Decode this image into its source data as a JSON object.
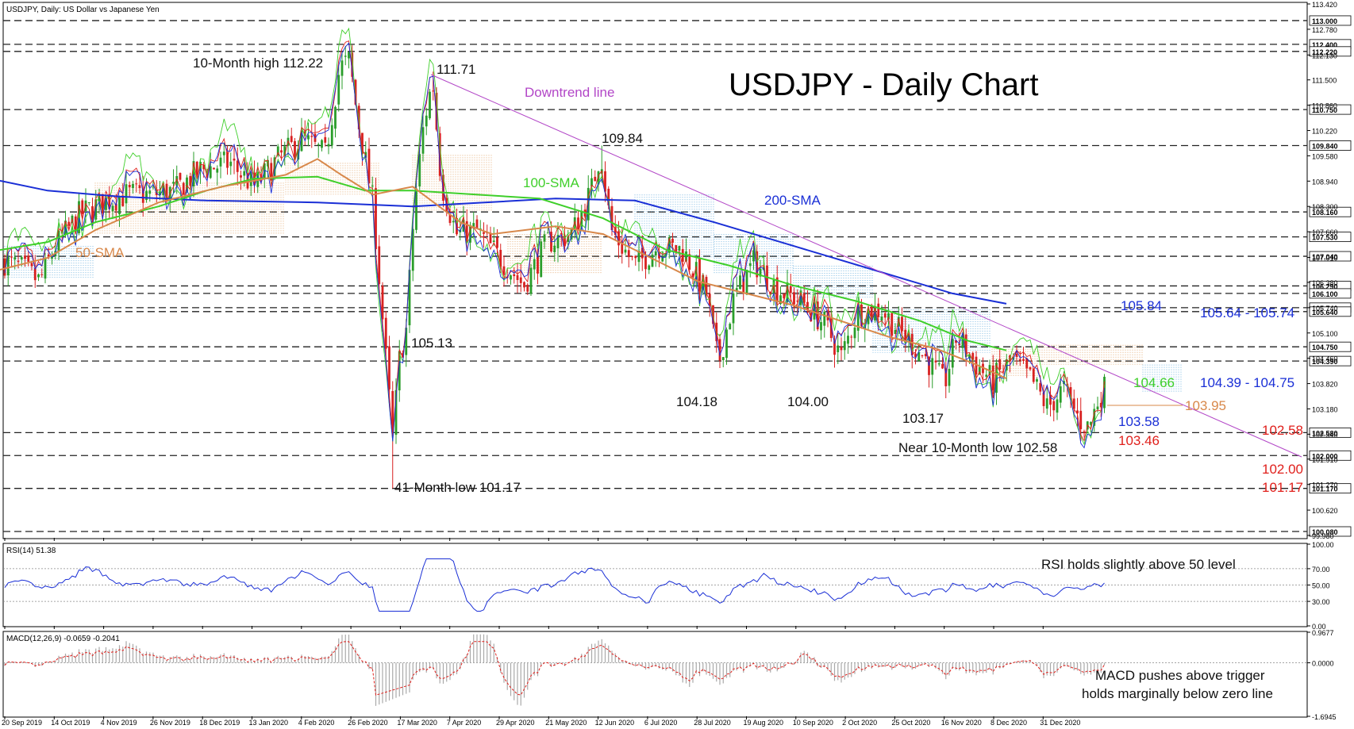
{
  "chart_data": {
    "type": "line",
    "window_title": "USDJPY, Daily:  US Dollar vs Japanese Yen",
    "title": "USDJPY - Daily Chart",
    "ylim": [
      99.66,
      113.42
    ],
    "x_tick_labels": [
      "20 Sep 2019",
      "14 Oct 2019",
      "4 Nov 2019",
      "26 Nov 2019",
      "18 Dec 2019",
      "13 Jan 2020",
      "4 Feb 2020",
      "26 Feb 2020",
      "17 Mar 2020",
      "7 Apr 2020",
      "29 Apr 2020",
      "21 May 2020",
      "12 Jun 2020",
      "6 Jul 2020",
      "28 Jul 2020",
      "19 Aug 2020",
      "10 Sep 2020",
      "2 Oct 2020",
      "25 Oct 2020",
      "16 Nov 2020",
      "8 Dec 2020",
      "31 Dec 2020"
    ],
    "y_tick_labels": [
      "113.420",
      "112.780",
      "112.130",
      "111.500",
      "110.860",
      "110.220",
      "109.580",
      "108.940",
      "108.300",
      "107.660",
      "107.010",
      "106.380",
      "105.740",
      "105.100",
      "104.460",
      "103.820",
      "103.180",
      "102.540",
      "101.910",
      "101.270",
      "100.620",
      "99.980"
    ],
    "price_levels": [
      "113.000",
      "112.400",
      "112.220",
      "110.750",
      "109.840",
      "108.160",
      "107.530",
      "107.040",
      "106.290",
      "106.100",
      "105.740",
      "105.640",
      "104.750",
      "104.390",
      "102.580",
      "102.000",
      "101.170",
      "100.080"
    ],
    "series": [
      {
        "name": "200-SMA",
        "color": "#1a2fd6",
        "values": [
          [
            0,
            108.95
          ],
          [
            60,
            108.7
          ],
          [
            150,
            108.55
          ],
          [
            260,
            108.45
          ],
          [
            400,
            108.4
          ],
          [
            520,
            108.3
          ],
          [
            700,
            108.5
          ],
          [
            800,
            108.45
          ],
          [
            900,
            107.9
          ],
          [
            1000,
            107.3
          ],
          [
            1100,
            106.7
          ],
          [
            1200,
            106.1
          ],
          [
            1268,
            105.84
          ]
        ]
      },
      {
        "name": "100-SMA",
        "color": "#3fcf2a",
        "values": [
          [
            0,
            107.2
          ],
          [
            60,
            107.4
          ],
          [
            120,
            107.9
          ],
          [
            200,
            108.3
          ],
          [
            260,
            108.7
          ],
          [
            320,
            109.0
          ],
          [
            400,
            109.05
          ],
          [
            460,
            108.7
          ],
          [
            520,
            108.7
          ],
          [
            600,
            108.6
          ],
          [
            680,
            108.5
          ],
          [
            760,
            108.0
          ],
          [
            840,
            107.2
          ],
          [
            920,
            106.8
          ],
          [
            1000,
            106.3
          ],
          [
            1080,
            105.9
          ],
          [
            1160,
            105.4
          ],
          [
            1220,
            104.9
          ],
          [
            1268,
            104.66
          ]
        ]
      },
      {
        "name": "50-SMA",
        "color": "#d8884a",
        "values": [
          [
            0,
            106.7
          ],
          [
            60,
            107.0
          ],
          [
            120,
            107.7
          ],
          [
            200,
            108.4
          ],
          [
            280,
            108.8
          ],
          [
            360,
            109.1
          ],
          [
            400,
            109.5
          ],
          [
            430,
            109.1
          ],
          [
            470,
            108.6
          ],
          [
            520,
            108.8
          ],
          [
            580,
            107.9
          ],
          [
            620,
            107.6
          ],
          [
            700,
            107.8
          ],
          [
            760,
            107.6
          ],
          [
            820,
            107.0
          ],
          [
            880,
            106.4
          ],
          [
            940,
            106.1
          ],
          [
            1000,
            105.8
          ],
          [
            1060,
            105.4
          ],
          [
            1120,
            105.0
          ],
          [
            1180,
            104.7
          ],
          [
            1230,
            104.3
          ],
          [
            1268,
            103.95
          ]
        ]
      }
    ],
    "annotations": [
      {
        "text": "10-Month high 112.22",
        "color": "#111111"
      },
      {
        "text": "111.71",
        "color": "#111111"
      },
      {
        "text": "109.84",
        "color": "#111111"
      },
      {
        "text": "105.13",
        "color": "#111111"
      },
      {
        "text": "104.18",
        "color": "#111111"
      },
      {
        "text": "104.00",
        "color": "#111111"
      },
      {
        "text": "103.17",
        "color": "#111111"
      },
      {
        "text": "Near 10-Month low 102.58",
        "color": "#111111"
      },
      {
        "text": "41-Month low 101.17",
        "color": "#111111"
      },
      {
        "text": "Downtrend line",
        "color": "#b246c7"
      },
      {
        "text": "100-SMA",
        "color": "#3fcf2a"
      },
      {
        "text": "200-SMA",
        "color": "#1a2fd6"
      },
      {
        "text": "50-SMA",
        "color": "#d8884a"
      },
      {
        "text": "105.84",
        "color": "#1a2fd6"
      },
      {
        "text": "105.64 - 105.74",
        "color": "#1a2fd6"
      },
      {
        "text": "104.66",
        "color": "#3fcf2a"
      },
      {
        "text": "104.39 - 104.75",
        "color": "#1a2fd6"
      },
      {
        "text": "103.95",
        "color": "#d8884a"
      },
      {
        "text": "103.58",
        "color": "#1a2fd6"
      },
      {
        "text": "103.46",
        "color": "#e0201c"
      },
      {
        "text": "102.58",
        "color": "#e0201c"
      },
      {
        "text": "102.00",
        "color": "#e0201c"
      },
      {
        "text": "101.17",
        "color": "#e0201c"
      }
    ],
    "rsi": {
      "header": "RSI(14) 51.38",
      "ticks": [
        "100.00",
        "70.00",
        "50.00",
        "30.00",
        "0.00"
      ],
      "note": "RSI holds slightly above 50 level",
      "color": "#1a2fd6"
    },
    "macd": {
      "header": "MACD(12,26,9) -0.0659 -0.2041",
      "ticks": [
        "0.9677",
        "0.0000",
        "-1.6945"
      ],
      "note_line1": "MACD pushes above trigger",
      "note_line2": "holds marginally below zero line",
      "signal_color": "#e0201c",
      "histogram_color": "#aaaaaa"
    }
  }
}
